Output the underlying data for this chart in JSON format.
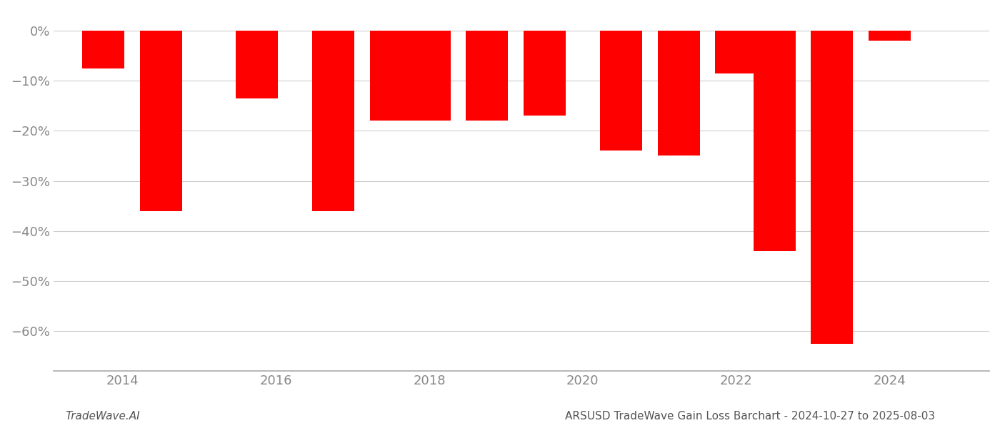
{
  "bars": [
    {
      "x": 2013.75,
      "value": -7.5
    },
    {
      "x": 2014.5,
      "value": -36.0
    },
    {
      "x": 2015.75,
      "value": -13.5
    },
    {
      "x": 2016.75,
      "value": -36.0
    },
    {
      "x": 2017.5,
      "value": -18.0
    },
    {
      "x": 2018.0,
      "value": -18.0
    },
    {
      "x": 2018.75,
      "value": -18.0
    },
    {
      "x": 2019.5,
      "value": -17.0
    },
    {
      "x": 2020.5,
      "value": -24.0
    },
    {
      "x": 2021.25,
      "value": -25.0
    },
    {
      "x": 2022.0,
      "value": -8.5
    },
    {
      "x": 2022.5,
      "value": -44.0
    },
    {
      "x": 2023.25,
      "value": -62.5
    },
    {
      "x": 2024.0,
      "value": -2.0
    }
  ],
  "bar_color": "#ff0000",
  "background_color": "#ffffff",
  "ylim": [
    -68,
    4
  ],
  "xlim": [
    2013.1,
    2025.3
  ],
  "yticks": [
    0,
    -10,
    -20,
    -30,
    -40,
    -50,
    -60
  ],
  "ytick_labels": [
    "0%",
    "−10%",
    "−20%",
    "−30%",
    "−40%",
    "−50%",
    "−60%"
  ],
  "xticks": [
    2014,
    2016,
    2018,
    2020,
    2022,
    2024
  ],
  "grid_color": "#cccccc",
  "bar_width": 0.55,
  "footer_left": "TradeWave.AI",
  "footer_right": "ARSUSD TradeWave Gain Loss Barchart - 2024-10-27 to 2025-08-03",
  "tick_label_color": "#888888",
  "spine_color": "#aaaaaa"
}
